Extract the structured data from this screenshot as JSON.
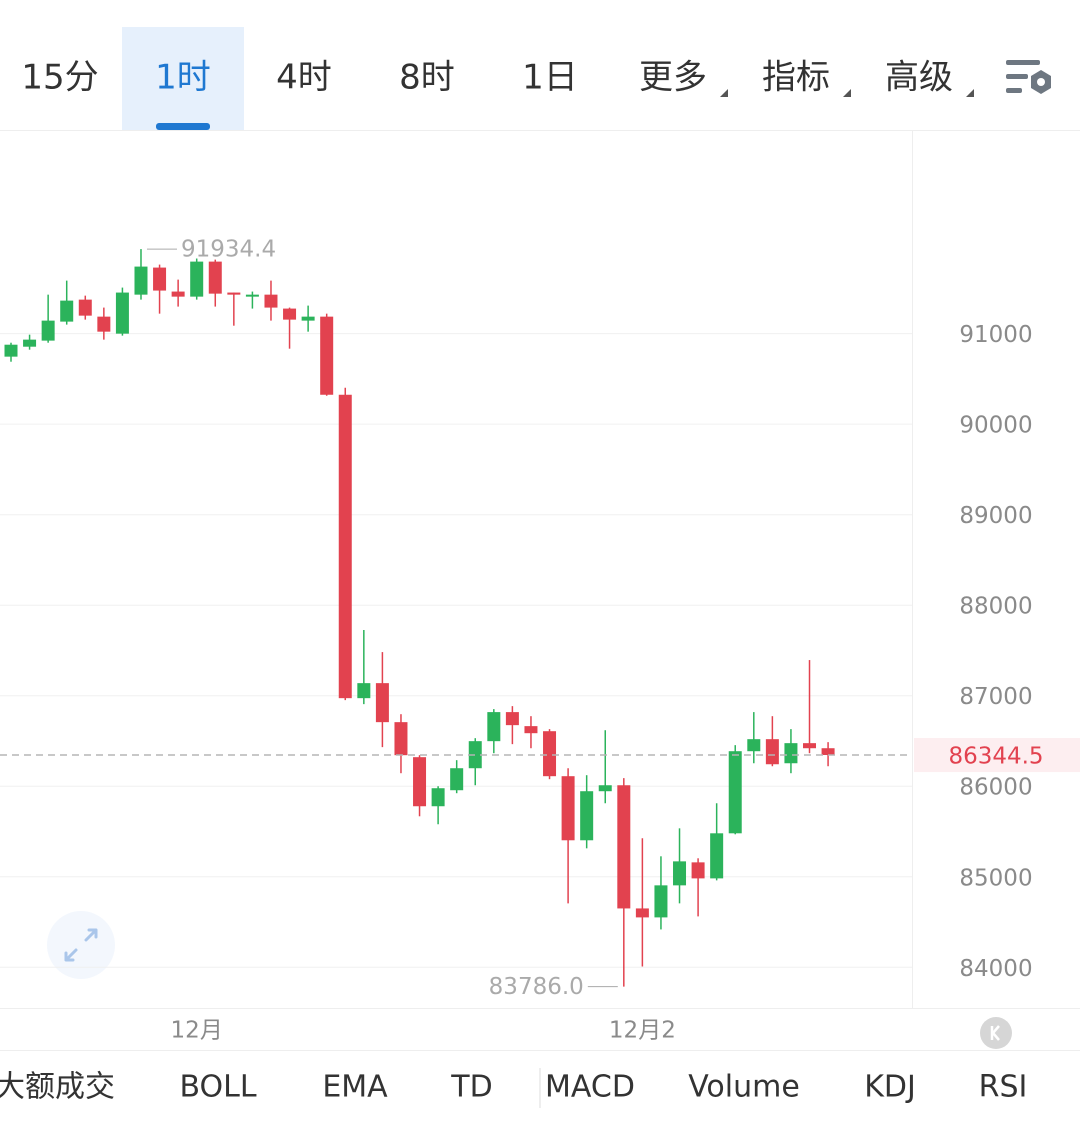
{
  "tabs": [
    "15分",
    "1时",
    "4时",
    "8时",
    "1日",
    "更多",
    "指标",
    "高级"
  ],
  "active_tab": 1,
  "indicators": [
    "大额成交",
    "BOLL",
    "EMA",
    "TD",
    "MACD",
    "Volume",
    "KDJ",
    "RSI"
  ],
  "chart_data": {
    "type": "candlestick",
    "up_color": "#2bb35b",
    "down_color": "#e2424f",
    "ylim": [
      83550,
      93250
    ],
    "yticks": [
      84000,
      85000,
      86000,
      87000,
      88000,
      89000,
      90000,
      91000
    ],
    "grid": true,
    "categories": [
      null,
      null,
      null,
      null,
      null,
      null,
      null,
      null,
      null,
      null,
      "12月",
      null,
      null,
      null,
      null,
      null,
      null,
      null,
      null,
      null,
      null,
      null,
      null,
      null,
      null,
      null,
      null,
      null,
      null,
      null,
      null,
      null,
      null,
      null,
      "12月2",
      null,
      null,
      null,
      null,
      null,
      null,
      null,
      null,
      null,
      null
    ],
    "open": [
      90746,
      90856,
      90923,
      91133,
      91376,
      91188,
      91000,
      91431,
      91730,
      91465,
      91409,
      91796,
      91454,
      91409,
      91431,
      91277,
      91144,
      91188,
      90325,
      86973,
      87139,
      86708,
      86321,
      85779,
      85956,
      86199,
      86498,
      86819,
      86664,
      86608,
      86111,
      85403,
      85945,
      86011,
      84650,
      84551,
      84905,
      85159,
      84982,
      85480,
      86387,
      86520,
      86254,
      86476,
      86420
    ],
    "high": [
      90900,
      90989,
      91431,
      91586,
      91420,
      91288,
      91509,
      91934.4,
      91763,
      91597,
      91830,
      91818,
      91454,
      91465,
      91586,
      91288,
      91310,
      91221,
      90403,
      87726,
      87482,
      86796,
      86343,
      86000,
      86288,
      86531,
      86852,
      86885,
      86774,
      86631,
      86199,
      86122,
      86619,
      86089,
      85425,
      85226,
      85535,
      85204,
      85812,
      86454,
      86819,
      86774,
      86631,
      87394,
      86487
    ],
    "low": [
      90690,
      90823,
      90900,
      91100,
      91155,
      90934,
      90978,
      91376,
      91221,
      91299,
      91376,
      91299,
      91088,
      91277,
      91144,
      90834,
      91022,
      90314,
      86951,
      86907,
      86432,
      86144,
      85668,
      85580,
      85923,
      86011,
      86365,
      86465,
      86420,
      86078,
      84706,
      85314,
      85812,
      83786,
      84009,
      84418,
      84706,
      84562,
      84960,
      85469,
      86254,
      86221,
      86144,
      86365,
      86221
    ],
    "close": [
      90878,
      90934,
      91144,
      91365,
      91199,
      91022,
      91454,
      91741,
      91476,
      91409,
      91796,
      91442,
      91431,
      91431,
      91288,
      91155,
      91188,
      90325,
      86973,
      87139,
      86708,
      86343,
      85779,
      85978,
      86199,
      86498,
      86819,
      86675,
      86586,
      86111,
      85403,
      85945,
      86011,
      84650,
      84551,
      84905,
      85170,
      84982,
      85480,
      86387,
      86520,
      86243,
      86476,
      86420,
      86345
    ],
    "high_label": 91934.4,
    "low_label": {
      "value": 83786,
      "label": "83786.0"
    },
    "last_price": 86344.5
  }
}
